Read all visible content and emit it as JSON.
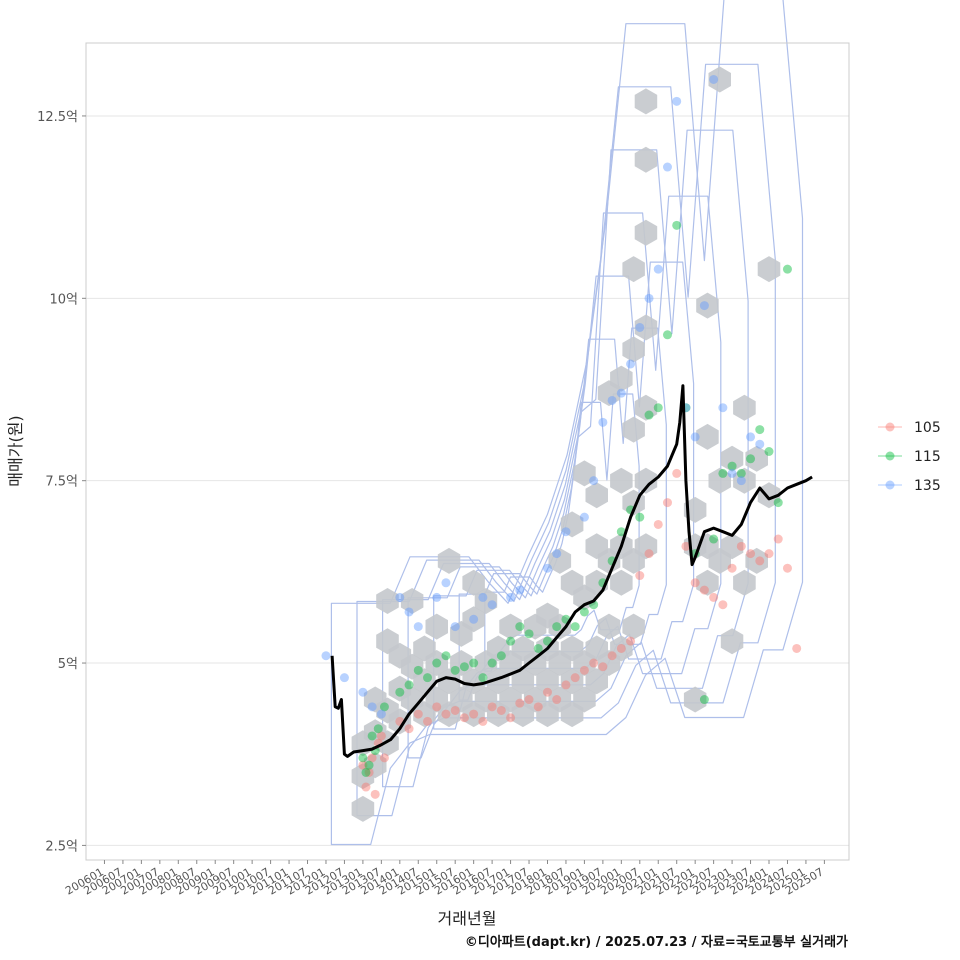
{
  "chart_data": {
    "type": "scatter",
    "xlabel": "거래년월",
    "ylabel": "매매가(원)",
    "caption": "©디아파트(dapt.kr) / 2025.07.23 / 자료=국토교통부 실거래가",
    "x_ticks": [
      "200601",
      "200607",
      "200701",
      "200707",
      "200801",
      "200807",
      "200901",
      "200907",
      "201001",
      "201007",
      "201101",
      "201107",
      "201201",
      "201207",
      "201301",
      "201307",
      "201401",
      "201407",
      "201501",
      "201507",
      "201601",
      "201607",
      "201701",
      "201707",
      "201801",
      "201807",
      "201901",
      "201907",
      "202001",
      "202007",
      "202101",
      "202107",
      "202201",
      "202207",
      "202301",
      "202307",
      "202401",
      "202407",
      "202501",
      "202507"
    ],
    "y_ticks": [
      {
        "value": 2.5,
        "label": "2.5억"
      },
      {
        "value": 5,
        "label": "5억"
      },
      {
        "value": 7.5,
        "label": "7.5억"
      },
      {
        "value": 10,
        "label": "10억"
      },
      {
        "value": 12.5,
        "label": "12.5억"
      }
    ],
    "ylim": [
      2.3,
      13.5
    ],
    "xlim": [
      "200507",
      "202603"
    ],
    "grid": true,
    "legend_position": "right",
    "legend": [
      {
        "name": "105",
        "color": "#F8766D"
      },
      {
        "name": "115",
        "color": "#00BA38"
      },
      {
        "name": "135",
        "color": "#619CFF"
      }
    ],
    "hex_color": "#c4c8cc",
    "contour_color": "#aebfea",
    "trend_color": "#000000",
    "trend_line": [
      [
        "201203",
        5.1
      ],
      [
        "201204",
        4.4
      ],
      [
        "201205",
        4.38
      ],
      [
        "201206",
        4.5
      ],
      [
        "201207",
        3.75
      ],
      [
        "201208",
        3.72
      ],
      [
        "201210",
        3.78
      ],
      [
        "201301",
        3.8
      ],
      [
        "201304",
        3.82
      ],
      [
        "201307",
        3.88
      ],
      [
        "201310",
        3.95
      ],
      [
        "201401",
        4.1
      ],
      [
        "201404",
        4.3
      ],
      [
        "201407",
        4.45
      ],
      [
        "201410",
        4.6
      ],
      [
        "201501",
        4.75
      ],
      [
        "201504",
        4.8
      ],
      [
        "201507",
        4.78
      ],
      [
        "201510",
        4.72
      ],
      [
        "201601",
        4.7
      ],
      [
        "201604",
        4.72
      ],
      [
        "201607",
        4.76
      ],
      [
        "201610",
        4.8
      ],
      [
        "201701",
        4.85
      ],
      [
        "201704",
        4.9
      ],
      [
        "201707",
        5.0
      ],
      [
        "201710",
        5.1
      ],
      [
        "201801",
        5.2
      ],
      [
        "201804",
        5.35
      ],
      [
        "201807",
        5.5
      ],
      [
        "201810",
        5.7
      ],
      [
        "201901",
        5.8
      ],
      [
        "201904",
        5.85
      ],
      [
        "201907",
        6.0
      ],
      [
        "201910",
        6.3
      ],
      [
        "202001",
        6.6
      ],
      [
        "202004",
        7.0
      ],
      [
        "202007",
        7.3
      ],
      [
        "202010",
        7.45
      ],
      [
        "202101",
        7.55
      ],
      [
        "202104",
        7.7
      ],
      [
        "202106",
        7.9
      ],
      [
        "202107",
        8.0
      ],
      [
        "202108",
        8.3
      ],
      [
        "202109",
        8.8
      ],
      [
        "202110",
        7.5
      ],
      [
        "202111",
        6.8
      ],
      [
        "202112",
        6.35
      ],
      [
        "202201",
        6.45
      ],
      [
        "202204",
        6.8
      ],
      [
        "202207",
        6.85
      ],
      [
        "202210",
        6.8
      ],
      [
        "202301",
        6.75
      ],
      [
        "202304",
        6.9
      ],
      [
        "202307",
        7.2
      ],
      [
        "202310",
        7.4
      ],
      [
        "202401",
        7.25
      ],
      [
        "202404",
        7.3
      ],
      [
        "202407",
        7.4
      ],
      [
        "202410",
        7.45
      ],
      [
        "202501",
        7.5
      ],
      [
        "202503",
        7.55
      ]
    ],
    "series": [
      {
        "name": "105",
        "points": [
          [
            "201301",
            3.6
          ],
          [
            "201302",
            3.3
          ],
          [
            "201303",
            3.5
          ],
          [
            "201304",
            3.7
          ],
          [
            "201305",
            3.2
          ],
          [
            "201306",
            3.9
          ],
          [
            "201307",
            4.0
          ],
          [
            "201308",
            3.7
          ],
          [
            "201401",
            4.2
          ],
          [
            "201404",
            4.1
          ],
          [
            "201407",
            4.3
          ],
          [
            "201410",
            4.2
          ],
          [
            "201501",
            4.4
          ],
          [
            "201504",
            4.3
          ],
          [
            "201507",
            4.35
          ],
          [
            "201510",
            4.25
          ],
          [
            "201601",
            4.3
          ],
          [
            "201604",
            4.2
          ],
          [
            "201607",
            4.4
          ],
          [
            "201610",
            4.35
          ],
          [
            "201701",
            4.25
          ],
          [
            "201704",
            4.45
          ],
          [
            "201707",
            4.5
          ],
          [
            "201710",
            4.4
          ],
          [
            "201801",
            4.6
          ],
          [
            "201804",
            4.5
          ],
          [
            "201807",
            4.7
          ],
          [
            "201810",
            4.8
          ],
          [
            "201901",
            4.9
          ],
          [
            "201904",
            5.0
          ],
          [
            "201907",
            4.95
          ],
          [
            "201910",
            5.1
          ],
          [
            "202001",
            5.2
          ],
          [
            "202004",
            5.3
          ],
          [
            "202007",
            6.2
          ],
          [
            "202010",
            6.5
          ],
          [
            "202101",
            6.9
          ],
          [
            "202104",
            7.2
          ],
          [
            "202107",
            7.6
          ],
          [
            "202110",
            6.6
          ],
          [
            "202201",
            6.1
          ],
          [
            "202204",
            6.0
          ],
          [
            "202207",
            5.9
          ],
          [
            "202210",
            5.8
          ],
          [
            "202301",
            6.3
          ],
          [
            "202304",
            6.6
          ],
          [
            "202307",
            6.5
          ],
          [
            "202310",
            6.4
          ],
          [
            "202401",
            6.5
          ],
          [
            "202404",
            6.7
          ],
          [
            "202407",
            6.3
          ],
          [
            "202410",
            5.2
          ]
        ]
      },
      {
        "name": "115",
        "points": [
          [
            "201301",
            3.7
          ],
          [
            "201302",
            3.5
          ],
          [
            "201303",
            3.6
          ],
          [
            "201304",
            4.0
          ],
          [
            "201305",
            3.8
          ],
          [
            "201306",
            4.1
          ],
          [
            "201308",
            4.4
          ],
          [
            "201401",
            4.6
          ],
          [
            "201404",
            4.7
          ],
          [
            "201407",
            4.9
          ],
          [
            "201410",
            4.8
          ],
          [
            "201501",
            5.0
          ],
          [
            "201504",
            5.1
          ],
          [
            "201507",
            4.9
          ],
          [
            "201510",
            4.95
          ],
          [
            "201601",
            5.0
          ],
          [
            "201604",
            4.8
          ],
          [
            "201607",
            5.0
          ],
          [
            "201610",
            5.1
          ],
          [
            "201701",
            5.3
          ],
          [
            "201704",
            5.5
          ],
          [
            "201707",
            5.4
          ],
          [
            "201710",
            5.2
          ],
          [
            "201801",
            5.3
          ],
          [
            "201804",
            5.5
          ],
          [
            "201807",
            5.6
          ],
          [
            "201810",
            5.5
          ],
          [
            "201901",
            5.7
          ],
          [
            "201904",
            5.8
          ],
          [
            "201907",
            6.1
          ],
          [
            "201910",
            6.4
          ],
          [
            "202001",
            6.8
          ],
          [
            "202004",
            7.1
          ],
          [
            "202007",
            7.0
          ],
          [
            "202010",
            8.4
          ],
          [
            "202101",
            8.5
          ],
          [
            "202104",
            9.5
          ],
          [
            "202107",
            11.0
          ],
          [
            "202110",
            8.5
          ],
          [
            "202201",
            6.5
          ],
          [
            "202204",
            4.5
          ],
          [
            "202207",
            6.7
          ],
          [
            "202210",
            7.6
          ],
          [
            "202301",
            7.7
          ],
          [
            "202304",
            7.6
          ],
          [
            "202307",
            7.8
          ],
          [
            "202310",
            8.2
          ],
          [
            "202401",
            7.9
          ],
          [
            "202404",
            7.2
          ],
          [
            "202407",
            10.4
          ]
        ]
      },
      {
        "name": "135",
        "points": [
          [
            "201201",
            5.1
          ],
          [
            "201207",
            4.8
          ],
          [
            "201301",
            4.6
          ],
          [
            "201304",
            4.4
          ],
          [
            "201307",
            4.3
          ],
          [
            "201401",
            5.9
          ],
          [
            "201404",
            5.7
          ],
          [
            "201407",
            5.5
          ],
          [
            "201501",
            5.9
          ],
          [
            "201504",
            6.1
          ],
          [
            "201507",
            5.5
          ],
          [
            "201601",
            5.6
          ],
          [
            "201604",
            5.9
          ],
          [
            "201607",
            5.8
          ],
          [
            "201701",
            5.9
          ],
          [
            "201704",
            6.0
          ],
          [
            "201801",
            6.3
          ],
          [
            "201804",
            6.5
          ],
          [
            "201807",
            6.8
          ],
          [
            "201901",
            7.0
          ],
          [
            "201904",
            7.5
          ],
          [
            "201907",
            8.3
          ],
          [
            "201910",
            8.6
          ],
          [
            "202001",
            8.7
          ],
          [
            "202004",
            9.1
          ],
          [
            "202007",
            9.6
          ],
          [
            "202010",
            10.0
          ],
          [
            "202101",
            10.4
          ],
          [
            "202104",
            11.8
          ],
          [
            "202107",
            12.7
          ],
          [
            "202110",
            8.5
          ],
          [
            "202201",
            8.1
          ],
          [
            "202204",
            9.9
          ],
          [
            "202207",
            13.0
          ],
          [
            "202210",
            8.5
          ],
          [
            "202301",
            7.6
          ],
          [
            "202304",
            7.5
          ],
          [
            "202307",
            8.1
          ],
          [
            "202310",
            8.0
          ]
        ]
      }
    ],
    "hexbins": [
      [
        "201301",
        3.0
      ],
      [
        "201301",
        3.45
      ],
      [
        "201301",
        3.9
      ],
      [
        "201305",
        3.6
      ],
      [
        "201305",
        4.05
      ],
      [
        "201305",
        4.5
      ],
      [
        "201309",
        3.9
      ],
      [
        "201309",
        4.35
      ],
      [
        "201309",
        5.3
      ],
      [
        "201309",
        5.85
      ],
      [
        "201401",
        4.2
      ],
      [
        "201401",
        4.65
      ],
      [
        "201401",
        5.1
      ],
      [
        "201405",
        4.5
      ],
      [
        "201405",
        4.95
      ],
      [
        "201405",
        5.85
      ],
      [
        "201409",
        4.3
      ],
      [
        "201409",
        4.75
      ],
      [
        "201409",
        5.2
      ],
      [
        "201501",
        4.5
      ],
      [
        "201501",
        5.0
      ],
      [
        "201501",
        5.5
      ],
      [
        "201505",
        4.3
      ],
      [
        "201505",
        4.75
      ],
      [
        "201505",
        6.4
      ],
      [
        "201509",
        4.5
      ],
      [
        "201509",
        5.0
      ],
      [
        "201509",
        5.4
      ],
      [
        "201601",
        4.3
      ],
      [
        "201601",
        4.75
      ],
      [
        "201601",
        5.6
      ],
      [
        "201601",
        6.1
      ],
      [
        "201605",
        4.5
      ],
      [
        "201605",
        5.0
      ],
      [
        "201605",
        5.85
      ],
      [
        "201609",
        4.3
      ],
      [
        "201609",
        4.75
      ],
      [
        "201609",
        5.2
      ],
      [
        "201701",
        4.5
      ],
      [
        "201701",
        5.0
      ],
      [
        "201701",
        5.5
      ],
      [
        "201705",
        4.3
      ],
      [
        "201705",
        4.75
      ],
      [
        "201705",
        5.2
      ],
      [
        "201709",
        4.5
      ],
      [
        "201709",
        5.0
      ],
      [
        "201709",
        5.5
      ],
      [
        "201801",
        4.3
      ],
      [
        "201801",
        4.75
      ],
      [
        "201801",
        5.2
      ],
      [
        "201801",
        5.65
      ],
      [
        "201805",
        4.5
      ],
      [
        "201805",
        5.0
      ],
      [
        "201805",
        5.5
      ],
      [
        "201805",
        6.4
      ],
      [
        "201809",
        4.3
      ],
      [
        "201809",
        4.75
      ],
      [
        "201809",
        5.2
      ],
      [
        "201809",
        6.1
      ],
      [
        "201809",
        6.9
      ],
      [
        "201901",
        4.5
      ],
      [
        "201901",
        5.0
      ],
      [
        "201901",
        5.9
      ],
      [
        "201901",
        7.6
      ],
      [
        "201905",
        4.75
      ],
      [
        "201905",
        5.2
      ],
      [
        "201905",
        6.1
      ],
      [
        "201905",
        6.6
      ],
      [
        "201905",
        7.3
      ],
      [
        "201909",
        5.0
      ],
      [
        "201909",
        5.5
      ],
      [
        "201909",
        6.4
      ],
      [
        "201909",
        8.7
      ],
      [
        "202001",
        5.2
      ],
      [
        "202001",
        6.1
      ],
      [
        "202001",
        6.6
      ],
      [
        "202001",
        7.5
      ],
      [
        "202001",
        8.9
      ],
      [
        "202005",
        5.5
      ],
      [
        "202005",
        6.4
      ],
      [
        "202005",
        7.2
      ],
      [
        "202005",
        8.2
      ],
      [
        "202005",
        9.3
      ],
      [
        "202005",
        10.4
      ],
      [
        "202009",
        6.6
      ],
      [
        "202009",
        7.5
      ],
      [
        "202009",
        8.5
      ],
      [
        "202009",
        9.6
      ],
      [
        "202009",
        10.9
      ],
      [
        "202009",
        11.9
      ],
      [
        "202009",
        12.7
      ],
      [
        "202201",
        4.5
      ],
      [
        "202201",
        6.6
      ],
      [
        "202201",
        7.1
      ],
      [
        "202205",
        6.1
      ],
      [
        "202205",
        6.6
      ],
      [
        "202205",
        8.1
      ],
      [
        "202205",
        9.9
      ],
      [
        "202209",
        6.4
      ],
      [
        "202209",
        7.5
      ],
      [
        "202209",
        13.0
      ],
      [
        "202301",
        5.3
      ],
      [
        "202301",
        6.6
      ],
      [
        "202301",
        7.8
      ],
      [
        "202305",
        6.1
      ],
      [
        "202305",
        7.5
      ],
      [
        "202305",
        8.5
      ],
      [
        "202309",
        6.4
      ],
      [
        "202309",
        7.8
      ],
      [
        "202401",
        7.3
      ],
      [
        "202401",
        10.4
      ]
    ]
  }
}
